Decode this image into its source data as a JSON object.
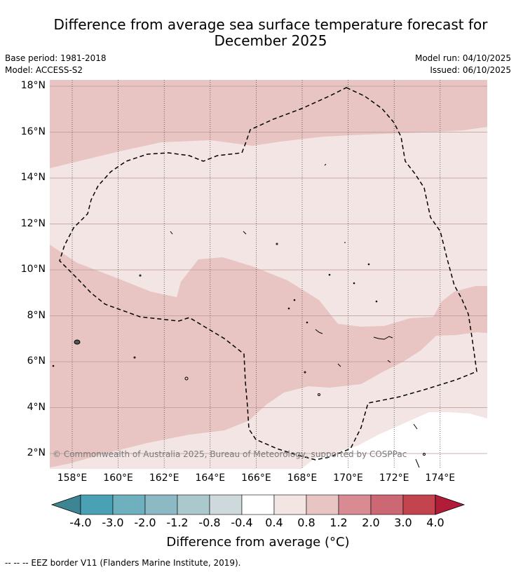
{
  "header": {
    "title_line1": "Difference from average sea surface temperature forecast for",
    "title_line2": "December 2025",
    "base_period": "Base period: 1981-2018",
    "model": "Model: ACCESS-S2",
    "model_run": "Model run: 04/10/2025",
    "issued": "Issued: 06/10/2025"
  },
  "chart_data": {
    "type": "heatmap",
    "map_extent": {
      "lon": [
        157,
        176
      ],
      "lat": [
        1.5,
        18.3
      ]
    },
    "y_ticks": [
      {
        "value": 18,
        "label": "18°N"
      },
      {
        "value": 16,
        "label": "16°N"
      },
      {
        "value": 14,
        "label": "14°N"
      },
      {
        "value": 12,
        "label": "12°N"
      },
      {
        "value": 10,
        "label": "10°N"
      },
      {
        "value": 8,
        "label": "8°N"
      },
      {
        "value": 6,
        "label": "6°N"
      },
      {
        "value": 4,
        "label": "4°N"
      },
      {
        "value": 2,
        "label": "2°N"
      }
    ],
    "x_ticks": [
      {
        "value": 158,
        "label": "158°E"
      },
      {
        "value": 160,
        "label": "160°E"
      },
      {
        "value": 162,
        "label": "162°E"
      },
      {
        "value": 164,
        "label": "164°E"
      },
      {
        "value": 166,
        "label": "166°E"
      },
      {
        "value": 168,
        "label": "168°E"
      },
      {
        "value": 170,
        "label": "170°E"
      },
      {
        "value": 172,
        "label": "172°E"
      },
      {
        "value": 174,
        "label": "174°E"
      }
    ],
    "colorbar": {
      "labels": [
        "-4.0",
        "-3.0",
        "-2.0",
        "-1.2",
        "-0.8",
        "-0.4",
        "0.4",
        "0.8",
        "1.2",
        "2.0",
        "3.0",
        "4.0"
      ],
      "colors": [
        "#4aa1b3",
        "#6fb0bf",
        "#8db9c4",
        "#abc8cd",
        "#ced9db",
        "#ffffff",
        "#f3e5e4",
        "#e8c5c2",
        "#d88b93",
        "#cc6873",
        "#c3444f"
      ],
      "under_color": "#3d8592",
      "over_color": "#b11d38",
      "title": "Difference from average (°C)"
    },
    "regions": [
      {
        "range": "0.4 to 0.8",
        "color": "#f3e5e4",
        "area": "most of map, central band"
      },
      {
        "range": "0.8 to 1.2",
        "color": "#e8c5c2",
        "area": "north of ~15°N and southwest / central band from 11°N to 4°N"
      },
      {
        "range": "-0.4 to 0.4",
        "color": "#ffffff",
        "area": "southeast corner near 4°N–2°N, 172°E–176°E"
      }
    ]
  },
  "copyright": "© Commonwealth of Australia 2025, Bureau of Meteorology, supported by COSPPac",
  "footer": "--  --  -- EEZ border V11 (Flanders Marine Institute, 2019)."
}
